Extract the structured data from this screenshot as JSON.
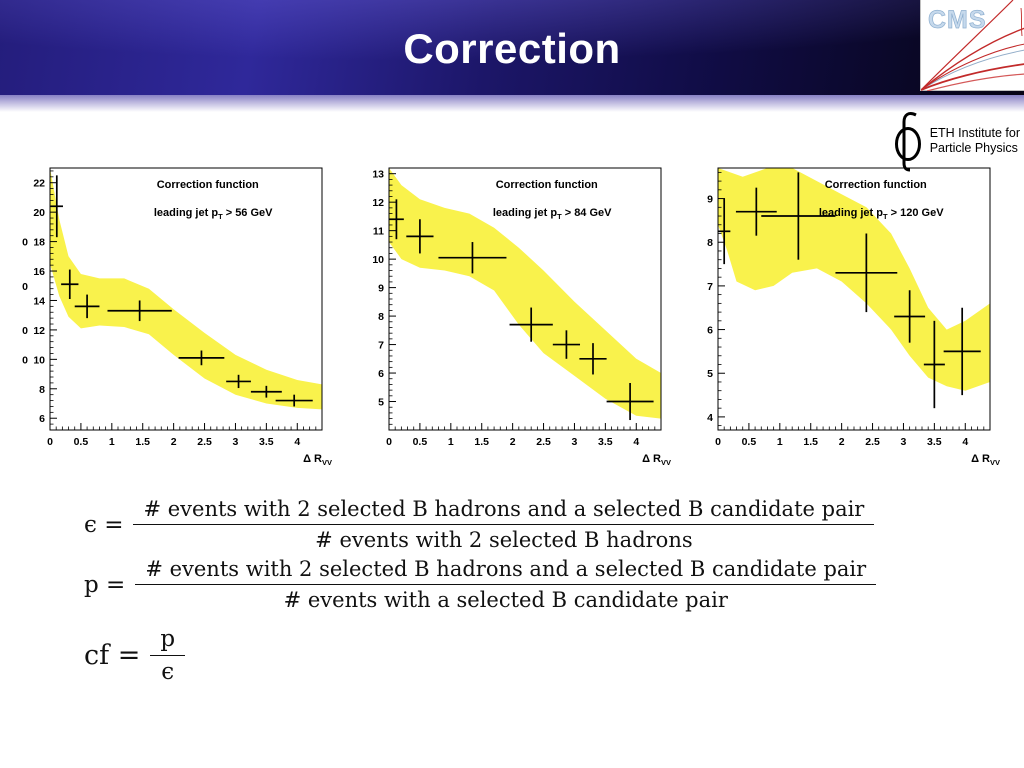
{
  "slide": {
    "title": "Correction"
  },
  "logos": {
    "cms_text": "CMS",
    "eth_text_line1": "ETH Institute for",
    "eth_text_line2": "Particle Physics"
  },
  "chart_data": [
    {
      "type": "scatter",
      "title": "Correction function",
      "subtitle": {
        "pre": "leading jet p",
        "sub": "T",
        "post": " > 56 GeV"
      },
      "xlabel": {
        "pre": "Δ R",
        "sub": "VV"
      },
      "xlim": [
        0,
        4.4
      ],
      "ylim": [
        5.2,
        23.0
      ],
      "xticks": [
        0,
        0.5,
        1,
        1.5,
        2,
        2.5,
        3,
        3.5,
        4
      ],
      "xtick_labels": [
        "0",
        "0.5",
        "1",
        "1.5",
        "2",
        "2.5",
        "3",
        "3.5",
        "4"
      ],
      "yticks": [
        6,
        8,
        10,
        12,
        14,
        16,
        18,
        20,
        22
      ],
      "ytick_labels": [
        "6",
        "8",
        "10",
        "12",
        "14",
        "16",
        "18",
        "20",
        "22"
      ],
      "yminor": 0.4,
      "band_color": "#f9f24c",
      "band_upper": [
        [
          0,
          23
        ],
        [
          0.15,
          19.5
        ],
        [
          0.3,
          17
        ],
        [
          0.5,
          15.8
        ],
        [
          0.8,
          15.5
        ],
        [
          1.2,
          15.5
        ],
        [
          1.6,
          14.8
        ],
        [
          2.0,
          13.4
        ],
        [
          2.5,
          11.8
        ],
        [
          3.0,
          10.3
        ],
        [
          3.5,
          9.3
        ],
        [
          4.0,
          8.6
        ],
        [
          4.4,
          8.3
        ]
      ],
      "band_lower": [
        [
          4.4,
          6.6
        ],
        [
          4.0,
          6.7
        ],
        [
          3.5,
          7.0
        ],
        [
          3.0,
          7.6
        ],
        [
          2.5,
          8.7
        ],
        [
          2.0,
          10.3
        ],
        [
          1.6,
          11.7
        ],
        [
          1.2,
          12.2
        ],
        [
          0.8,
          12.3
        ],
        [
          0.5,
          12.1
        ],
        [
          0.3,
          12.9
        ],
        [
          0.15,
          14.3
        ],
        [
          0,
          16.5
        ]
      ],
      "points": [
        {
          "x": 0.11,
          "y": 20.4,
          "ex": 0.1,
          "ey": 2.1
        },
        {
          "x": 0.32,
          "y": 15.1,
          "ex": 0.14,
          "ey": 1.0
        },
        {
          "x": 0.6,
          "y": 13.6,
          "ex": 0.2,
          "ey": 0.8
        },
        {
          "x": 1.45,
          "y": 13.3,
          "ex": 0.52,
          "ey": 0.7
        },
        {
          "x": 2.45,
          "y": 10.1,
          "ex": 0.37,
          "ey": 0.5
        },
        {
          "x": 3.05,
          "y": 8.5,
          "ex": 0.2,
          "ey": 0.45
        },
        {
          "x": 3.5,
          "y": 7.8,
          "ex": 0.25,
          "ey": 0.4
        },
        {
          "x": 3.95,
          "y": 7.2,
          "ex": 0.3,
          "ey": 0.4
        }
      ],
      "axis_fragments": [
        {
          "text": "0",
          "v": 18
        },
        {
          "text": "0",
          "v": 15
        },
        {
          "text": "0",
          "v": 12
        },
        {
          "text": "0",
          "v": 10
        }
      ]
    },
    {
      "type": "scatter",
      "title": "Correction function",
      "subtitle": {
        "pre": "leading jet p",
        "sub": "T",
        "post": " > 84 GeV"
      },
      "xlabel": {
        "pre": "Δ R",
        "sub": "VV"
      },
      "xlim": [
        0,
        4.4
      ],
      "ylim": [
        4.0,
        13.2
      ],
      "xticks": [
        0,
        0.5,
        1,
        1.5,
        2,
        2.5,
        3,
        3.5,
        4
      ],
      "xtick_labels": [
        "0",
        "0.5",
        "1",
        "1.5",
        "2",
        "2.5",
        "3",
        "3.5",
        "4"
      ],
      "yticks": [
        5,
        6,
        7,
        8,
        9,
        10,
        11,
        12,
        13
      ],
      "ytick_labels": [
        "5",
        "6",
        "7",
        "8",
        "9",
        "10",
        "11",
        "12",
        "13"
      ],
      "yminor": 0.2,
      "band_color": "#f9f24c",
      "band_upper": [
        [
          0,
          13.2
        ],
        [
          0.2,
          12.6
        ],
        [
          0.5,
          12.1
        ],
        [
          0.9,
          11.8
        ],
        [
          1.3,
          11.6
        ],
        [
          1.7,
          11.1
        ],
        [
          2.1,
          10.4
        ],
        [
          2.5,
          9.6
        ],
        [
          3.0,
          8.5
        ],
        [
          3.5,
          7.5
        ],
        [
          4.0,
          6.5
        ],
        [
          4.4,
          6.0
        ]
      ],
      "band_lower": [
        [
          4.4,
          4.4
        ],
        [
          4.0,
          4.5
        ],
        [
          3.5,
          5.1
        ],
        [
          3.0,
          5.9
        ],
        [
          2.5,
          6.7
        ],
        [
          2.1,
          7.7
        ],
        [
          1.7,
          8.9
        ],
        [
          1.3,
          9.4
        ],
        [
          0.9,
          9.6
        ],
        [
          0.5,
          9.7
        ],
        [
          0.2,
          10.0
        ],
        [
          0,
          10.6
        ]
      ],
      "points": [
        {
          "x": 0.12,
          "y": 11.4,
          "ex": 0.12,
          "ey": 0.7
        },
        {
          "x": 0.5,
          "y": 10.8,
          "ex": 0.22,
          "ey": 0.6
        },
        {
          "x": 1.35,
          "y": 10.05,
          "ex": 0.55,
          "ey": 0.55
        },
        {
          "x": 2.3,
          "y": 7.7,
          "ex": 0.35,
          "ey": 0.6
        },
        {
          "x": 2.87,
          "y": 7.0,
          "ex": 0.22,
          "ey": 0.5
        },
        {
          "x": 3.3,
          "y": 6.5,
          "ex": 0.22,
          "ey": 0.55
        },
        {
          "x": 3.9,
          "y": 5.0,
          "ex": 0.38,
          "ey": 0.65
        }
      ],
      "axis_fragments": []
    },
    {
      "type": "scatter",
      "title": "Correction function",
      "subtitle": {
        "pre": "leading jet p",
        "sub": "T",
        "post": " > 120 GeV"
      },
      "xlabel": {
        "pre": "Δ R",
        "sub": "VV"
      },
      "xlim": [
        0,
        4.4
      ],
      "ylim": [
        3.7,
        9.7
      ],
      "xticks": [
        0,
        0.5,
        1,
        1.5,
        2,
        2.5,
        3,
        3.5,
        4
      ],
      "xtick_labels": [
        "0",
        "0.5",
        "1",
        "1.5",
        "2",
        "2.5",
        "3",
        "3.5",
        "4"
      ],
      "yticks": [
        4,
        5,
        6,
        7,
        8,
        9
      ],
      "ytick_labels": [
        "4",
        "5",
        "6",
        "7",
        "8",
        "9"
      ],
      "yminor": 0.2,
      "band_color": "#f9f24c",
      "band_upper": [
        [
          0,
          9.7
        ],
        [
          0.4,
          9.5
        ],
        [
          0.8,
          9.7
        ],
        [
          1.2,
          9.7
        ],
        [
          1.6,
          9.4
        ],
        [
          2.0,
          9.1
        ],
        [
          2.4,
          8.8
        ],
        [
          2.8,
          8.2
        ],
        [
          3.1,
          7.4
        ],
        [
          3.4,
          6.5
        ],
        [
          3.7,
          6.0
        ],
        [
          4.0,
          6.2
        ],
        [
          4.4,
          6.6
        ]
      ],
      "band_lower": [
        [
          4.4,
          4.8
        ],
        [
          4.0,
          4.6
        ],
        [
          3.7,
          4.7
        ],
        [
          3.4,
          4.9
        ],
        [
          3.1,
          5.4
        ],
        [
          2.8,
          6.0
        ],
        [
          2.4,
          6.6
        ],
        [
          2.0,
          7.1
        ],
        [
          1.6,
          7.4
        ],
        [
          1.2,
          7.3
        ],
        [
          0.9,
          7.0
        ],
        [
          0.6,
          6.9
        ],
        [
          0.3,
          7.1
        ],
        [
          0.15,
          7.8
        ],
        [
          0,
          8.4
        ]
      ],
      "points": [
        {
          "x": 0.1,
          "y": 8.25,
          "ex": 0.1,
          "ey": 0.75
        },
        {
          "x": 0.62,
          "y": 8.7,
          "ex": 0.33,
          "ey": 0.55
        },
        {
          "x": 1.3,
          "y": 8.6,
          "ex": 0.6,
          "ey": 1.0
        },
        {
          "x": 2.4,
          "y": 7.3,
          "ex": 0.5,
          "ey": 0.9
        },
        {
          "x": 3.1,
          "y": 6.3,
          "ex": 0.25,
          "ey": 0.6
        },
        {
          "x": 3.5,
          "y": 5.2,
          "ex": 0.17,
          "ey": 1.0
        },
        {
          "x": 3.95,
          "y": 5.5,
          "ex": 0.3,
          "ey": 1.0
        }
      ],
      "axis_fragments": []
    }
  ],
  "formulas": {
    "epsilon": {
      "lhs": "ϵ =",
      "numerator": "# events with 2 selected B hadrons and a selected B candidate pair",
      "denominator": "# events with 2 selected B hadrons"
    },
    "p": {
      "lhs": "p =",
      "numerator": "# events with 2 selected B hadrons and a selected B candidate pair",
      "denominator": "# events with a selected B candidate pair"
    },
    "cf": {
      "lhs": "cf =",
      "numerator": "p",
      "denominator": "ϵ"
    }
  }
}
